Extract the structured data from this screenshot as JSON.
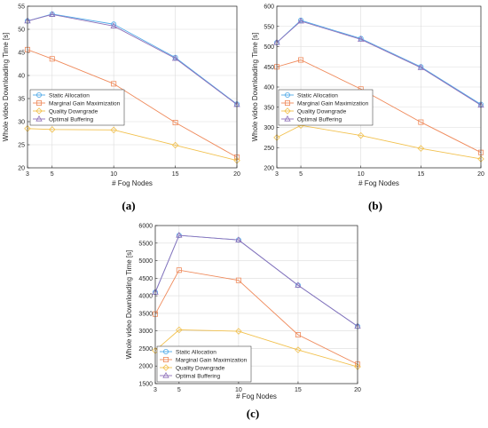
{
  "chart_data": [
    {
      "type": "line",
      "panel_label": "(a)",
      "xlabel": "# Fog Nodes",
      "ylabel": "Whole video Downloading Time [s]",
      "x": [
        3,
        5,
        10,
        15,
        20
      ],
      "xticks": [
        3,
        5,
        10,
        15,
        20
      ],
      "ylim": [
        20,
        55
      ],
      "yticks": [
        20,
        25,
        30,
        35,
        40,
        45,
        50,
        55
      ],
      "grid": true,
      "legend_position": "bottom-left",
      "series": [
        {
          "name": "Static Allocation",
          "color": "#4fa9e8",
          "marker": "circle",
          "values": [
            51.8,
            53.3,
            51.1,
            43.9,
            33.8
          ]
        },
        {
          "name": "Marginal Gain Maximization",
          "color": "#ef8a5b",
          "marker": "square",
          "values": [
            45.6,
            43.6,
            38.2,
            29.8,
            22.3
          ]
        },
        {
          "name": "Quality Downgrade",
          "color": "#f2c14e",
          "marker": "diamond",
          "values": [
            28.5,
            28.3,
            28.2,
            24.9,
            21.6
          ]
        },
        {
          "name": "Optimal Buffering",
          "color": "#8e6fb8",
          "marker": "triangle",
          "values": [
            51.8,
            53.2,
            50.7,
            43.7,
            33.7
          ]
        }
      ]
    },
    {
      "type": "line",
      "panel_label": "(b)",
      "xlabel": "# Fog Nodes",
      "ylabel": "Whole video Downloading Time [s]",
      "x": [
        3,
        5,
        10,
        15,
        20
      ],
      "xticks": [
        3,
        5,
        10,
        15,
        20
      ],
      "ylim": [
        200,
        600
      ],
      "yticks": [
        200,
        250,
        300,
        350,
        400,
        450,
        500,
        550,
        600
      ],
      "grid": true,
      "legend_position": "bottom-left",
      "series": [
        {
          "name": "Static Allocation",
          "color": "#4fa9e8",
          "marker": "circle",
          "values": [
            510,
            565,
            520,
            450,
            357
          ]
        },
        {
          "name": "Marginal Gain Maximization",
          "color": "#ef8a5b",
          "marker": "square",
          "values": [
            450,
            467,
            395,
            313,
            238
          ]
        },
        {
          "name": "Quality Downgrade",
          "color": "#f2c14e",
          "marker": "diamond",
          "values": [
            275,
            305,
            280,
            248,
            222
          ]
        },
        {
          "name": "Optimal Buffering",
          "color": "#8e6fb8",
          "marker": "triangle",
          "values": [
            510,
            563,
            518,
            448,
            355
          ]
        }
      ]
    },
    {
      "type": "line",
      "panel_label": "(c)",
      "xlabel": "# Fog Nodes",
      "ylabel": "Whole video Downloading Time [s]",
      "x": [
        3,
        5,
        10,
        15,
        20
      ],
      "xticks": [
        3,
        5,
        10,
        15,
        20
      ],
      "ylim": [
        1500,
        6000
      ],
      "yticks": [
        1500,
        2000,
        2500,
        3000,
        3500,
        4000,
        4500,
        5000,
        5500,
        6000
      ],
      "grid": true,
      "legend_position": "bottom-left",
      "series": [
        {
          "name": "Static Allocation",
          "color": "#4fa9e8",
          "marker": "circle",
          "values": [
            4100,
            5720,
            5590,
            4300,
            3130
          ]
        },
        {
          "name": "Marginal Gain Maximization",
          "color": "#ef8a5b",
          "marker": "square",
          "values": [
            3480,
            4730,
            4440,
            2890,
            2050
          ]
        },
        {
          "name": "Quality Downgrade",
          "color": "#f2c14e",
          "marker": "diamond",
          "values": [
            2440,
            3030,
            2990,
            2460,
            1980
          ]
        },
        {
          "name": "Optimal Buffering",
          "color": "#8e6fb8",
          "marker": "triangle",
          "values": [
            4100,
            5720,
            5590,
            4300,
            3130
          ]
        }
      ]
    }
  ]
}
